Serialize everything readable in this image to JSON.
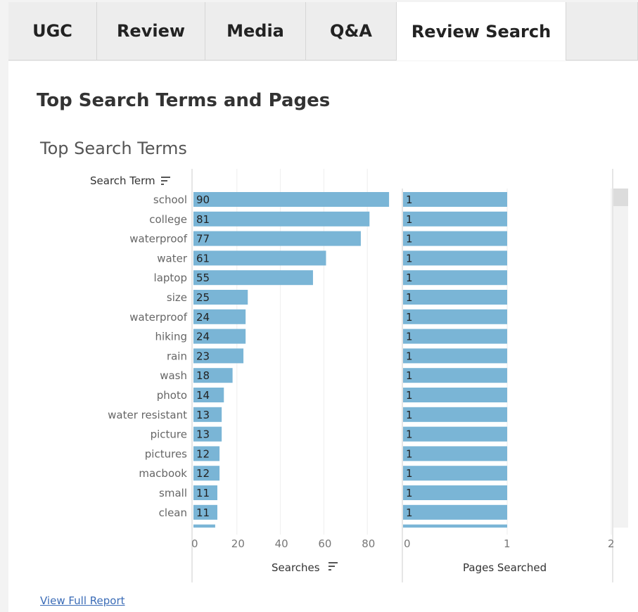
{
  "tabs": [
    {
      "label": "UGC"
    },
    {
      "label": "Review"
    },
    {
      "label": "Media"
    },
    {
      "label": "Q&A"
    },
    {
      "label": "Review Search",
      "active": true
    }
  ],
  "page_title": "Top Search Terms and Pages",
  "section_title": "Top Search Terms",
  "view_full_report": "View Full Report",
  "bar_color": "#7ab5d6",
  "chart_data": [
    {
      "type": "bar",
      "orientation": "horizontal",
      "row_header": "Search Term",
      "xlabel": "Searches",
      "xlim": [
        0,
        95
      ],
      "xticks": [
        "0",
        "20",
        "40",
        "60",
        "80"
      ],
      "grid": true,
      "categories": [
        "school",
        "college",
        "waterproof",
        "water",
        "laptop",
        "size",
        "waterproof",
        "hiking",
        "rain",
        "wash",
        "photo",
        "water resistant",
        "picture",
        "pictures",
        "macbook",
        "small",
        "clean",
        ""
      ],
      "values": [
        90,
        81,
        77,
        61,
        55,
        25,
        24,
        24,
        23,
        18,
        14,
        13,
        13,
        12,
        12,
        11,
        11,
        10
      ]
    },
    {
      "type": "bar",
      "orientation": "horizontal",
      "xlabel": "Pages Searched",
      "xlim": [
        0,
        2
      ],
      "xticks": [
        "0",
        "1",
        "2"
      ],
      "values": [
        1,
        1,
        1,
        1,
        1,
        1,
        1,
        1,
        1,
        1,
        1,
        1,
        1,
        1,
        1,
        1,
        1,
        1
      ]
    }
  ]
}
